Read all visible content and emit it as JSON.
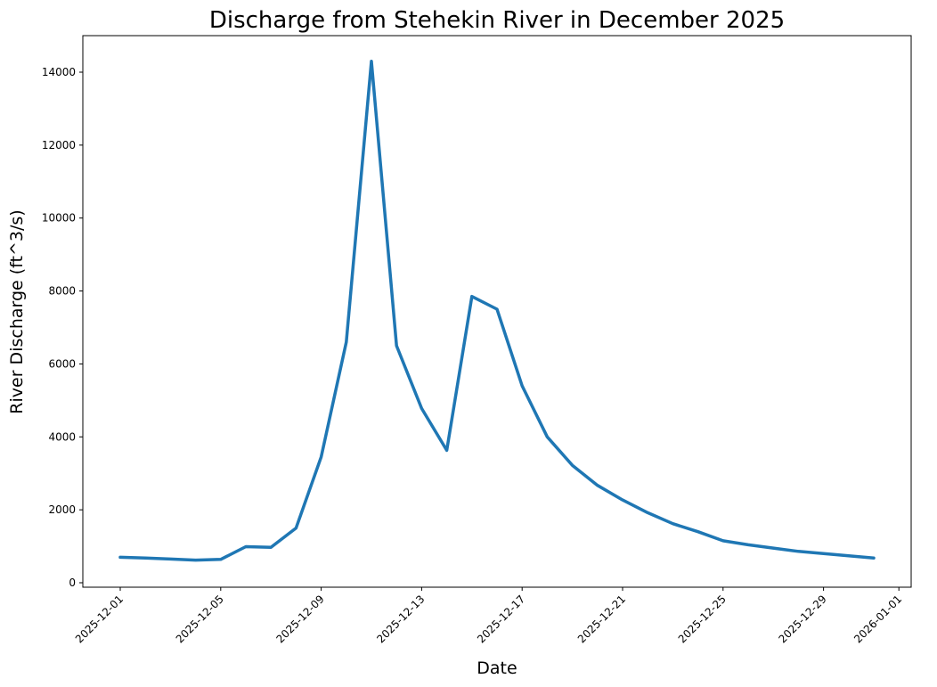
{
  "chart_data": {
    "type": "line",
    "title": "Discharge from Stehekin River in December 2025",
    "xlabel": "Date",
    "ylabel": "River Discharge (ft^3/s)",
    "ylim": [
      -150,
      14950
    ],
    "yticks": [
      0,
      2000,
      4000,
      6000,
      8000,
      10000,
      12000,
      14000
    ],
    "xticks": [
      "2025-12-01",
      "2025-12-05",
      "2025-12-09",
      "2025-12-13",
      "2025-12-17",
      "2025-12-21",
      "2025-12-25",
      "2025-12-29",
      "2026-01-01"
    ],
    "grid": false,
    "legend": null,
    "series": [
      {
        "name": "Discharge",
        "color": "#1f77b4",
        "x": [
          "2025-12-01",
          "2025-12-02",
          "2025-12-03",
          "2025-12-04",
          "2025-12-05",
          "2025-12-06",
          "2025-12-07",
          "2025-12-08",
          "2025-12-09",
          "2025-12-10",
          "2025-12-11",
          "2025-12-12",
          "2025-12-13",
          "2025-12-14",
          "2025-12-15",
          "2025-12-16",
          "2025-12-17",
          "2025-12-18",
          "2025-12-19",
          "2025-12-20",
          "2025-12-21",
          "2025-12-22",
          "2025-12-23",
          "2025-12-24",
          "2025-12-25",
          "2025-12-26",
          "2025-12-27",
          "2025-12-28",
          "2025-12-29",
          "2025-12-30",
          "2025-12-31"
        ],
        "values": [
          700,
          680,
          650,
          620,
          640,
          990,
          970,
          1500,
          3450,
          6600,
          14300,
          6500,
          4780,
          3630,
          7850,
          7500,
          5400,
          4000,
          3220,
          2670,
          2270,
          1920,
          1620,
          1400,
          1150,
          1040,
          950,
          860,
          800,
          740,
          680
        ]
      }
    ]
  }
}
